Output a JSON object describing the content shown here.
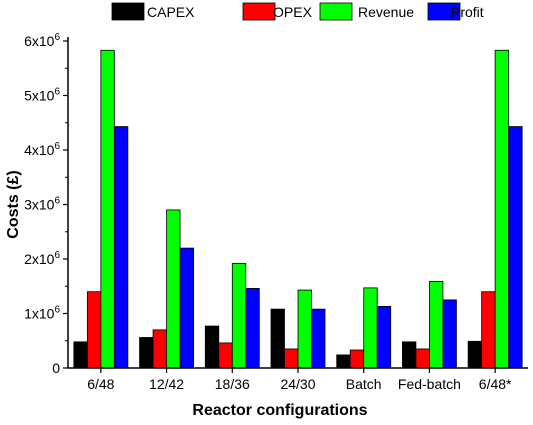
{
  "chart_data": {
    "type": "bar",
    "xlabel": "Reactor configurations",
    "ylabel": "Costs (£)",
    "ylim": [
      0,
      6000000
    ],
    "yticks": [
      {
        "value": 0,
        "mantissa": "0",
        "exp": ""
      },
      {
        "value": 1000000,
        "mantissa": "1x10",
        "exp": "6"
      },
      {
        "value": 2000000,
        "mantissa": "2x10",
        "exp": "6"
      },
      {
        "value": 3000000,
        "mantissa": "3x10",
        "exp": "6"
      },
      {
        "value": 4000000,
        "mantissa": "4x10",
        "exp": "6"
      },
      {
        "value": 5000000,
        "mantissa": "5x10",
        "exp": "6"
      },
      {
        "value": 6000000,
        "mantissa": "6x10",
        "exp": "6"
      }
    ],
    "categories": [
      "6/48",
      "12/42",
      "18/36",
      "24/30",
      "Batch",
      "Fed-batch",
      "6/48*"
    ],
    "series": [
      {
        "name": "CAPEX",
        "color": "#000000",
        "values": [
          480000,
          560000,
          770000,
          1080000,
          240000,
          480000,
          490000
        ]
      },
      {
        "name": "OPEX",
        "color": "#ff0000",
        "values": [
          1400000,
          700000,
          460000,
          350000,
          330000,
          350000,
          1400000
        ]
      },
      {
        "name": "Revenue",
        "color": "#00ff00",
        "values": [
          5830000,
          2900000,
          1920000,
          1430000,
          1470000,
          1590000,
          5830000
        ]
      },
      {
        "name": "Profit",
        "color": "#0000ff",
        "values": [
          4430000,
          2200000,
          1460000,
          1080000,
          1130000,
          1250000,
          4430000
        ]
      }
    ],
    "legend": "top",
    "grid": false
  }
}
